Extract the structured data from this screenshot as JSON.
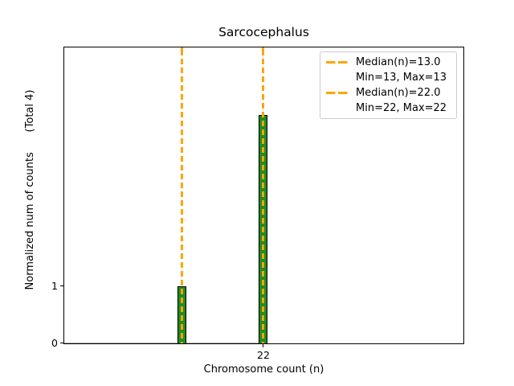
{
  "title": "Sarcocephalus",
  "axes": {
    "xlabel": "Chromosome count (n)",
    "ylabel": "Normalized num of counts      (Total 4)",
    "xticks": [
      "22"
    ],
    "yticks": [
      "0",
      "1"
    ]
  },
  "legend": {
    "entries": [
      {
        "swatch": "orange-dashed-line",
        "label": "Median(n)=13.0"
      },
      {
        "swatch": "none",
        "label": "Min=13, Max=13"
      },
      {
        "swatch": "orange-dashed-line",
        "label": "Median(n)=22.0"
      },
      {
        "swatch": "none",
        "label": "Min=22, Max=22"
      }
    ]
  },
  "colors": {
    "bar_fill": "#228B22",
    "bar_edge": "#000000",
    "median_line": "#FFA500",
    "legend_border": "#cccccc",
    "text": "#000000",
    "background": "#ffffff"
  },
  "chart_data": {
    "type": "bar",
    "title": "Sarcocephalus",
    "xlabel": "Chromosome count (n)",
    "ylabel": "Normalized num of counts      (Total 4)",
    "x": [
      13,
      22
    ],
    "values": [
      1,
      4
    ],
    "total": 4,
    "bar_width": 1,
    "xlim": [
      0,
      44
    ],
    "ylim": [
      0,
      5.2
    ],
    "xticks": [
      22
    ],
    "yticks": [
      0,
      1
    ],
    "grid": false,
    "legend_position": "upper right",
    "bar_color": "#228B22",
    "bar_edge_color": "#000000",
    "median_lines": [
      {
        "x": 13,
        "median": 13.0,
        "min": 13,
        "max": 13,
        "color": "#FFA500",
        "style": "dashed"
      },
      {
        "x": 22,
        "median": 22.0,
        "min": 22,
        "max": 22,
        "color": "#FFA500",
        "style": "dashed"
      }
    ]
  }
}
